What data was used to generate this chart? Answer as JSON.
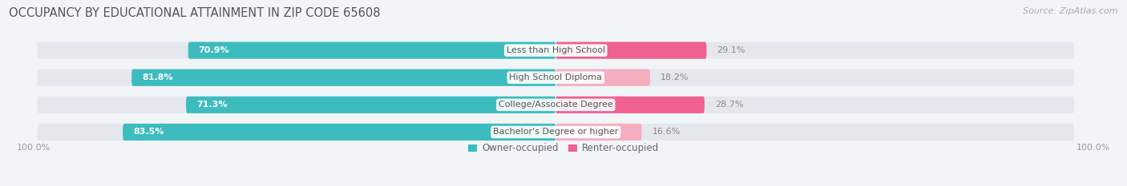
{
  "title": "OCCUPANCY BY EDUCATIONAL ATTAINMENT IN ZIP CODE 65608",
  "source": "Source: ZipAtlas.com",
  "categories": [
    "Less than High School",
    "High School Diploma",
    "College/Associate Degree",
    "Bachelor's Degree or higher"
  ],
  "owner_pct": [
    70.9,
    81.8,
    71.3,
    83.5
  ],
  "renter_pct": [
    29.1,
    18.2,
    28.7,
    16.6
  ],
  "owner_color": "#3dbcbf",
  "renter_color": "#f06090",
  "renter_color_light": "#f5adc0",
  "bg_color": "#f2f5f8",
  "bar_bg_color": "#e4e8ee",
  "title_fontsize": 10.5,
  "source_fontsize": 8,
  "label_fontsize": 8,
  "bar_label_fontsize": 8,
  "legend_fontsize": 8.5,
  "axis_label_fontsize": 8,
  "left_axis_label": "100.0%",
  "right_axis_label": "100.0%"
}
